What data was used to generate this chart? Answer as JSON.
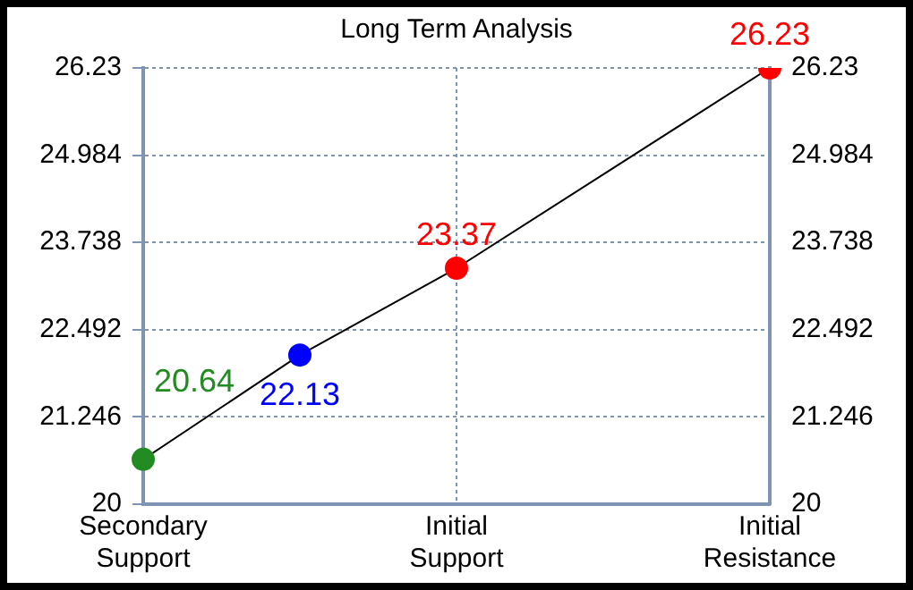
{
  "chart_data": {
    "type": "line",
    "title": "Long Term Analysis",
    "categories": [
      "Secondary Support",
      null,
      "Initial Support",
      null,
      "Initial Resistance"
    ],
    "ylim": [
      20,
      26.23
    ],
    "yticks": [
      20,
      21.246,
      22.492,
      23.738,
      24.984,
      26.23
    ],
    "y2lim": [
      20,
      26.23
    ],
    "y2ticks": [
      20,
      21.246,
      22.492,
      23.738,
      24.984,
      26.23
    ],
    "grid": true,
    "legend": false,
    "data_labels": true,
    "series": [
      {
        "type": "line",
        "color": "#000000",
        "marker": "circle",
        "colors": [
          "#228b22",
          "#0000ff",
          "#ff0000",
          null,
          "#ff0000"
        ],
        "values": [
          20.64,
          22.13,
          23.37,
          null,
          26.23
        ]
      }
    ]
  }
}
